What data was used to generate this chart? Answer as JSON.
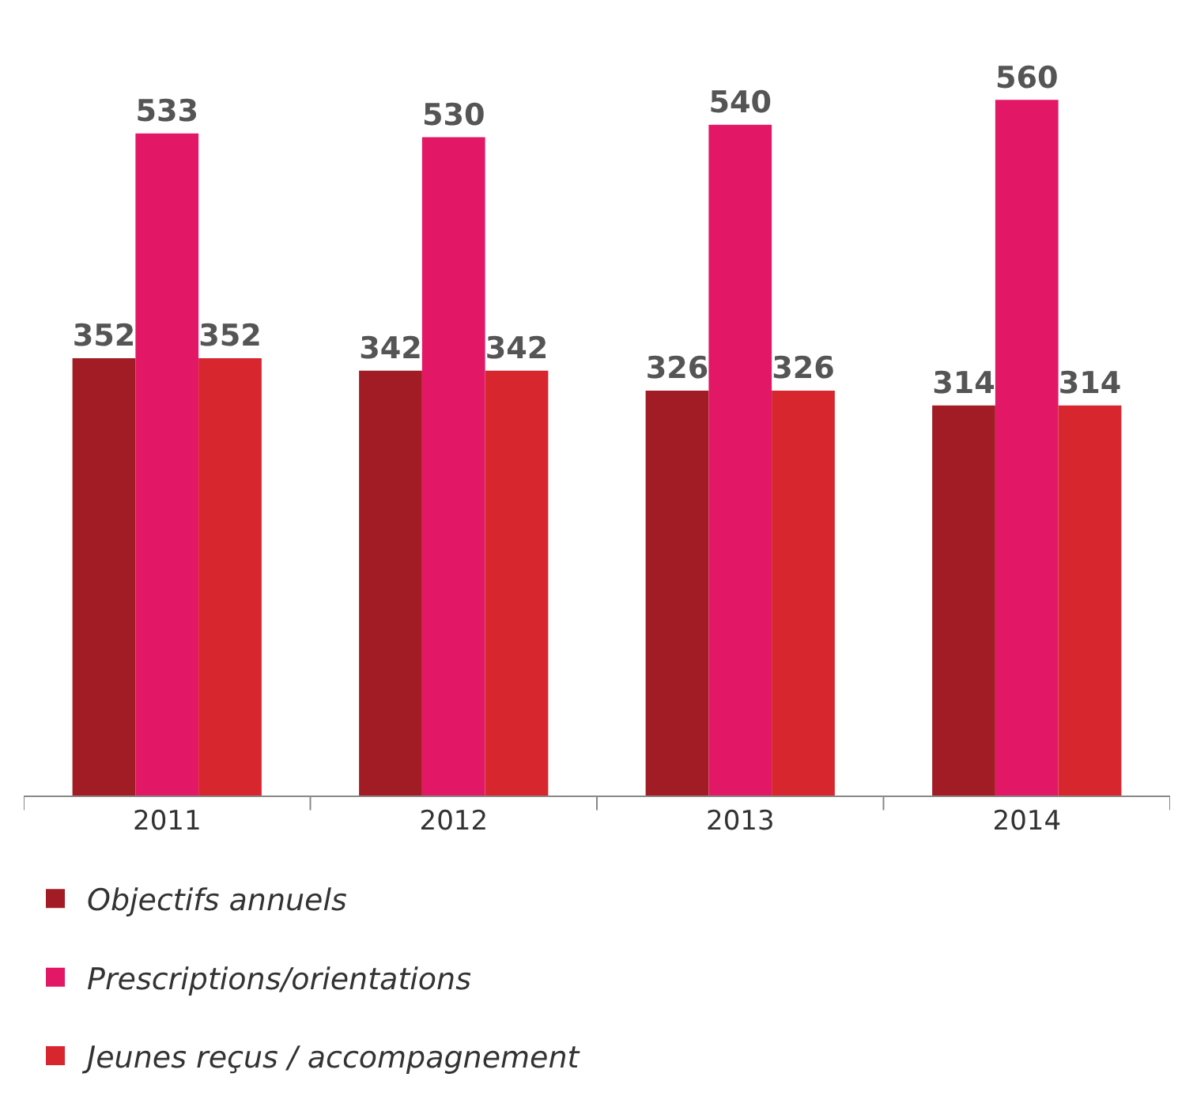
{
  "chart_data": {
    "type": "bar",
    "categories": [
      "2011",
      "2012",
      "2013",
      "2014"
    ],
    "series": [
      {
        "name": "Objectifs annuels",
        "color": "#a11c25",
        "values": [
          352,
          342,
          326,
          314
        ]
      },
      {
        "name": "Prescriptions/orientations",
        "color": "#e21866",
        "values": [
          533,
          530,
          540,
          560
        ]
      },
      {
        "name": "Jeunes reçus / accompagnement",
        "color": "#d8262f",
        "values": [
          352,
          342,
          326,
          314
        ]
      }
    ],
    "data_labels": true,
    "legend": "bottom"
  }
}
